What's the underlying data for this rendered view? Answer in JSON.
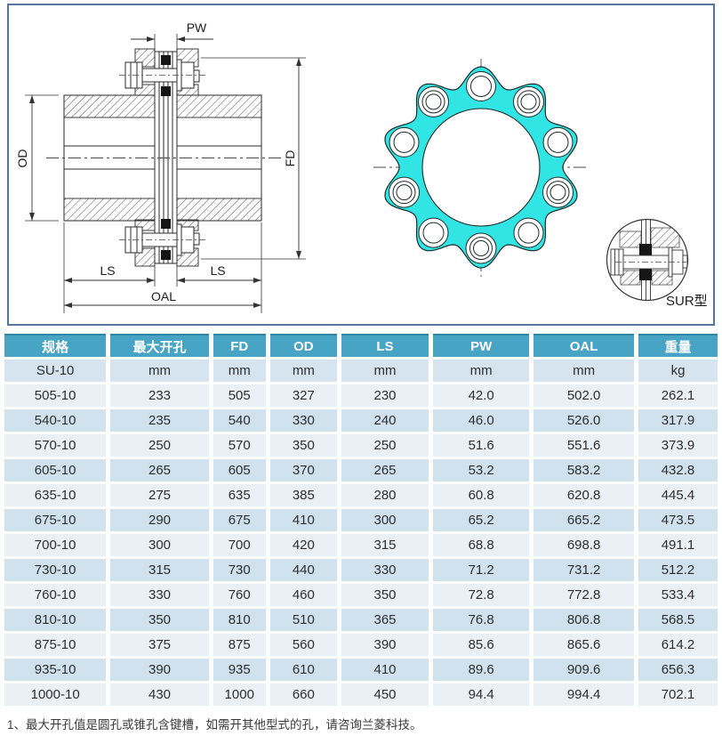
{
  "diagram": {
    "labels": {
      "pw": "PW",
      "od": "OD",
      "fd": "FD",
      "ls_left": "LS",
      "ls_right": "LS",
      "oal": "OAL",
      "sur": "SUR型"
    },
    "colors": {
      "flange_fill": "#30e5e3",
      "frame_border": "#55779c"
    }
  },
  "table": {
    "headers": [
      "规格",
      "最大开孔",
      "FD",
      "OD",
      "LS",
      "PW",
      "OAL",
      "重量"
    ],
    "unit_row": [
      "SU-10",
      "mm",
      "mm",
      "mm",
      "mm",
      "mm",
      "mm",
      "kg"
    ],
    "rows": [
      [
        "505-10",
        "233",
        "505",
        "327",
        "230",
        "42.0",
        "502.0",
        "262.1"
      ],
      [
        "540-10",
        "235",
        "540",
        "330",
        "240",
        "46.0",
        "526.0",
        "317.9"
      ],
      [
        "570-10",
        "250",
        "570",
        "350",
        "250",
        "51.6",
        "551.6",
        "373.9"
      ],
      [
        "605-10",
        "265",
        "605",
        "370",
        "265",
        "53.2",
        "583.2",
        "432.8"
      ],
      [
        "635-10",
        "275",
        "635",
        "385",
        "280",
        "60.8",
        "620.8",
        "445.4"
      ],
      [
        "675-10",
        "290",
        "675",
        "410",
        "300",
        "65.2",
        "665.2",
        "473.5"
      ],
      [
        "700-10",
        "300",
        "700",
        "420",
        "315",
        "68.8",
        "698.8",
        "491.1"
      ],
      [
        "730-10",
        "315",
        "730",
        "440",
        "330",
        "71.2",
        "731.2",
        "512.2"
      ],
      [
        "760-10",
        "330",
        "760",
        "460",
        "350",
        "72.8",
        "772.8",
        "533.4"
      ],
      [
        "810-10",
        "350",
        "810",
        "510",
        "365",
        "76.8",
        "806.8",
        "568.5"
      ],
      [
        "875-10",
        "375",
        "875",
        "560",
        "390",
        "85.6",
        "865.6",
        "614.2"
      ],
      [
        "935-10",
        "390",
        "935",
        "610",
        "410",
        "89.6",
        "909.6",
        "656.3"
      ],
      [
        "1000-10",
        "430",
        "1000",
        "660",
        "450",
        "94.4",
        "994.4",
        "702.1"
      ]
    ],
    "colors": {
      "header_bg": "#48a4c5",
      "unit_row_bg": "#d5e4ee",
      "row_light": "#e9f1f7",
      "row_blue": "#cfe2ee"
    }
  },
  "footnote": "1、最大开孔值是圆孔或锥孔含键槽，如需开其他型式的孔，请咨询兰菱科技。"
}
